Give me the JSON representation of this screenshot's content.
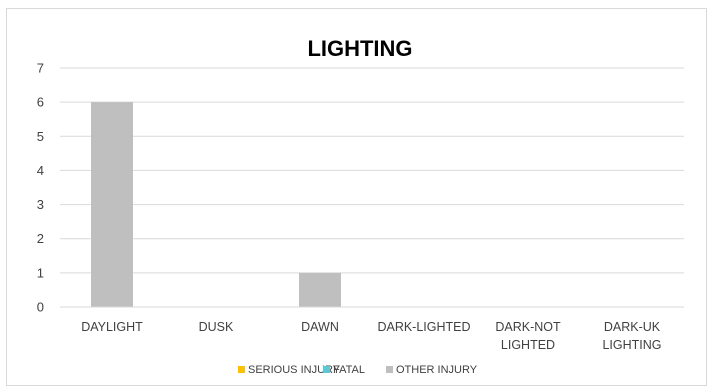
{
  "chart_data": {
    "type": "bar",
    "title": "LIGHTING",
    "categories": [
      [
        "DAYLIGHT"
      ],
      [
        "DUSK"
      ],
      [
        "DAWN"
      ],
      [
        "DARK-LIGHTED"
      ],
      [
        "DARK-NOT",
        "LIGHTED"
      ],
      [
        "DARK-UK",
        "LIGHTING"
      ]
    ],
    "series": [
      {
        "name": "SERIOUS INJURY",
        "color": "#ffc000",
        "values": [
          0,
          0,
          0,
          0,
          0,
          0
        ]
      },
      {
        "name": "FATAL",
        "color": "#5bc8d4",
        "values": [
          0,
          0,
          0,
          0,
          0,
          0
        ]
      },
      {
        "name": "OTHER INJURY",
        "color": "#bfbfbf",
        "values": [
          6,
          0,
          1,
          0,
          0,
          0
        ]
      }
    ],
    "ylim": [
      0,
      7
    ],
    "yticks": [
      0,
      1,
      2,
      3,
      4,
      5,
      6,
      7
    ],
    "grid": true,
    "legend_position": "bottom"
  }
}
